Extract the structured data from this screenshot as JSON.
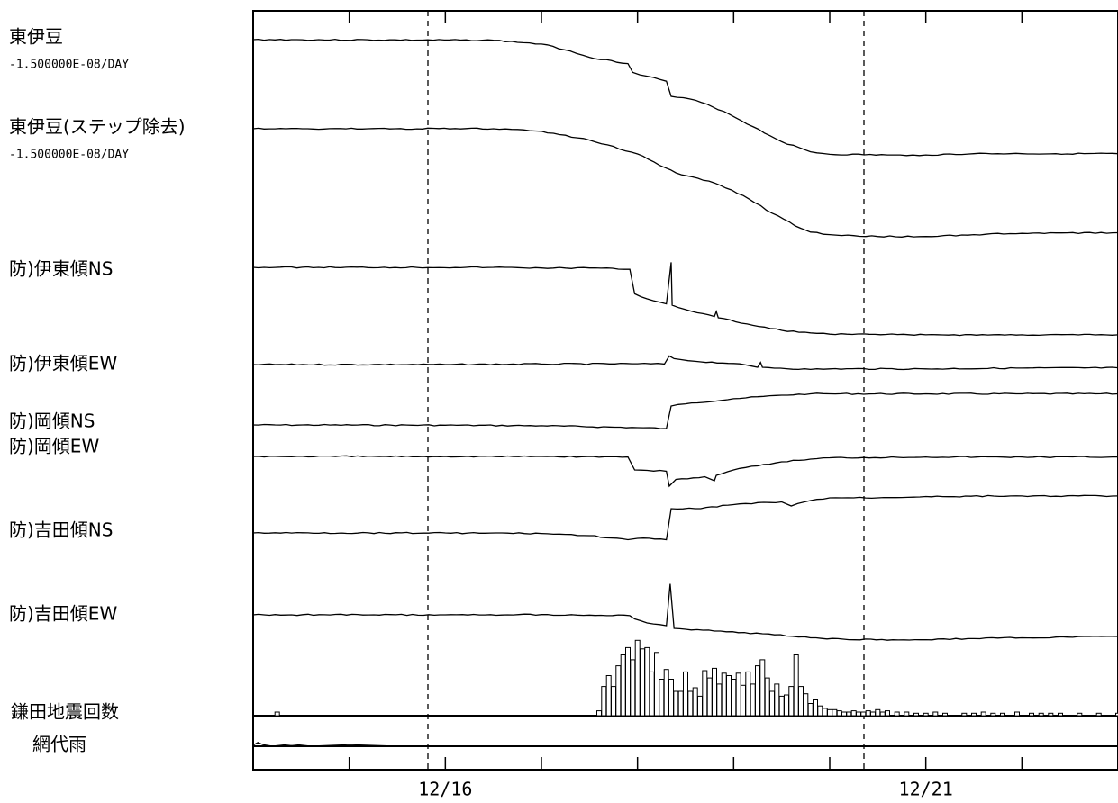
{
  "chart_data": {
    "type": "line",
    "title": "",
    "xlabel": "",
    "ylabel": "",
    "xlim": [
      14.0,
      23.0
    ],
    "x_tick_labels": [
      {
        "x": 16,
        "label": "12/16"
      },
      {
        "x": 21,
        "label": "12/21"
      }
    ],
    "x_ticks": [
      15,
      16,
      17,
      18,
      19,
      20,
      21,
      22
    ],
    "dashed_gridlines_x": [
      16,
      21
    ],
    "grid": false,
    "legend": "none",
    "series": [
      {
        "name": "東伊豆",
        "subtitle": "-1.500000E-08/DAY",
        "label_row": 0,
        "values": [
          [
            13.0,
            1.0
          ],
          [
            16.5,
            0.99
          ],
          [
            17.0,
            0.93
          ],
          [
            17.3,
            0.82
          ],
          [
            17.5,
            0.72
          ],
          [
            17.9,
            0.62
          ],
          [
            17.95,
            0.48
          ],
          [
            18.1,
            0.42
          ],
          [
            18.3,
            0.34
          ],
          [
            18.35,
            0.1
          ],
          [
            18.6,
            0.04
          ],
          [
            18.9,
            -0.14
          ],
          [
            19.2,
            -0.38
          ],
          [
            19.5,
            -0.62
          ],
          [
            19.8,
            -0.78
          ],
          [
            20.0,
            -0.82
          ],
          [
            20.6,
            -0.83
          ],
          [
            20.8,
            -0.84
          ],
          [
            21.0,
            -0.83
          ],
          [
            21.5,
            -0.81
          ],
          [
            22.0,
            -0.81
          ],
          [
            23.0,
            -0.81
          ]
        ]
      },
      {
        "name": "東伊豆(ステップ除去)",
        "subtitle": "-1.500000E-08/DAY",
        "label_row": 1,
        "values": [
          [
            13.0,
            1.0
          ],
          [
            16.5,
            1.0
          ],
          [
            17.0,
            0.96
          ],
          [
            17.5,
            0.82
          ],
          [
            18.0,
            0.6
          ],
          [
            18.4,
            0.3
          ],
          [
            18.8,
            0.14
          ],
          [
            19.1,
            -0.06
          ],
          [
            19.4,
            -0.34
          ],
          [
            19.7,
            -0.58
          ],
          [
            19.8,
            -0.64
          ],
          [
            20.0,
            -0.68
          ],
          [
            20.5,
            -0.71
          ],
          [
            21.0,
            -0.71
          ],
          [
            21.5,
            -0.68
          ],
          [
            22.0,
            -0.66
          ],
          [
            23.0,
            -0.65
          ]
        ]
      },
      {
        "name": "防)伊東傾NS",
        "label_row": 2,
        "values": [
          [
            13.0,
            1.0
          ],
          [
            16.5,
            1.0
          ],
          [
            17.0,
            0.99
          ],
          [
            17.5,
            0.99
          ],
          [
            17.92,
            0.97
          ],
          [
            17.97,
            0.58
          ],
          [
            18.1,
            0.5
          ],
          [
            18.3,
            0.42
          ],
          [
            18.35,
            1.08
          ],
          [
            18.36,
            0.4
          ],
          [
            18.5,
            0.33
          ],
          [
            18.8,
            0.22
          ],
          [
            18.82,
            0.3
          ],
          [
            18.84,
            0.2
          ],
          [
            19.2,
            0.08
          ],
          [
            19.5,
            0.0
          ],
          [
            19.8,
            -0.04
          ],
          [
            20.0,
            -0.06
          ],
          [
            21.0,
            -0.07
          ],
          [
            22.0,
            -0.07
          ],
          [
            23.0,
            -0.07
          ]
        ]
      },
      {
        "name": "防)伊東傾EW",
        "label_row": 3,
        "values": [
          [
            13.0,
            1.0
          ],
          [
            16.0,
            1.0
          ],
          [
            17.0,
            1.02
          ],
          [
            18.0,
            1.03
          ],
          [
            18.28,
            1.02
          ],
          [
            18.33,
            1.32
          ],
          [
            18.38,
            1.22
          ],
          [
            18.6,
            1.12
          ],
          [
            19.0,
            1.04
          ],
          [
            19.25,
            0.9
          ],
          [
            19.28,
            1.08
          ],
          [
            19.3,
            0.9
          ],
          [
            19.8,
            0.82
          ],
          [
            20.0,
            0.84
          ],
          [
            21.0,
            0.84
          ],
          [
            22.0,
            0.87
          ],
          [
            23.0,
            0.88
          ]
        ]
      },
      {
        "name": "防)岡傾NS",
        "label_row": 4,
        "values": [
          [
            13.0,
            1.0
          ],
          [
            16.0,
            0.99
          ],
          [
            17.0,
            0.97
          ],
          [
            18.0,
            0.9
          ],
          [
            18.3,
            0.87
          ],
          [
            18.35,
            1.7
          ],
          [
            18.5,
            1.78
          ],
          [
            19.0,
            1.97
          ],
          [
            19.5,
            2.1
          ],
          [
            19.8,
            2.15
          ],
          [
            20.0,
            2.15
          ],
          [
            21.0,
            2.15
          ],
          [
            22.0,
            2.15
          ],
          [
            23.0,
            2.15
          ]
        ]
      },
      {
        "name": "防)岡傾EW",
        "label_row": 5,
        "values": [
          [
            13.0,
            1.0
          ],
          [
            16.0,
            1.0
          ],
          [
            17.0,
            1.0
          ],
          [
            17.9,
            0.98
          ],
          [
            17.97,
            0.5
          ],
          [
            18.3,
            0.45
          ],
          [
            18.33,
            -0.1
          ],
          [
            18.4,
            0.15
          ],
          [
            18.7,
            0.25
          ],
          [
            18.8,
            0.1
          ],
          [
            18.82,
            0.3
          ],
          [
            19.0,
            0.5
          ],
          [
            19.5,
            0.8
          ],
          [
            19.8,
            0.9
          ],
          [
            20.0,
            0.95
          ],
          [
            21.0,
            0.98
          ],
          [
            22.0,
            0.98
          ],
          [
            23.0,
            0.98
          ]
        ]
      },
      {
        "name": "防)吉田傾NS",
        "label_row": 6,
        "values": [
          [
            13.0,
            1.0
          ],
          [
            16.0,
            1.0
          ],
          [
            17.0,
            0.98
          ],
          [
            17.5,
            0.9
          ],
          [
            17.9,
            0.75
          ],
          [
            18.0,
            0.8
          ],
          [
            18.3,
            0.75
          ],
          [
            18.35,
            1.9
          ],
          [
            18.6,
            1.9
          ],
          [
            19.0,
            2.05
          ],
          [
            19.5,
            2.15
          ],
          [
            19.6,
            2.0
          ],
          [
            19.8,
            2.2
          ],
          [
            20.0,
            2.3
          ],
          [
            20.5,
            2.3
          ],
          [
            21.0,
            2.35
          ],
          [
            22.0,
            2.37
          ],
          [
            23.0,
            2.37
          ]
        ]
      },
      {
        "name": "防)吉田傾EW",
        "label_row": 7,
        "values": [
          [
            13.0,
            1.0
          ],
          [
            16.0,
            1.0
          ],
          [
            17.0,
            1.01
          ],
          [
            17.5,
            0.99
          ],
          [
            17.92,
            0.97
          ],
          [
            17.97,
            0.85
          ],
          [
            18.1,
            0.7
          ],
          [
            18.3,
            0.6
          ],
          [
            18.34,
            2.15
          ],
          [
            18.38,
            0.5
          ],
          [
            18.8,
            0.4
          ],
          [
            19.3,
            0.3
          ],
          [
            19.8,
            0.15
          ],
          [
            20.2,
            0.08
          ],
          [
            21.0,
            0.08
          ],
          [
            21.5,
            0.12
          ],
          [
            22.0,
            0.15
          ],
          [
            23.0,
            0.2
          ]
        ]
      }
    ],
    "histogram": {
      "name": "鎌田地震回数",
      "label_row": 8,
      "bars": [
        [
          14.25,
          3
        ],
        [
          14.3,
          0
        ],
        [
          17.6,
          4
        ],
        [
          17.65,
          24
        ],
        [
          17.7,
          33
        ],
        [
          17.75,
          24
        ],
        [
          17.8,
          41
        ],
        [
          17.85,
          50
        ],
        [
          17.9,
          56
        ],
        [
          17.95,
          46
        ],
        [
          18.0,
          62
        ],
        [
          18.05,
          55
        ],
        [
          18.1,
          56
        ],
        [
          18.15,
          36
        ],
        [
          18.2,
          52
        ],
        [
          18.25,
          30
        ],
        [
          18.3,
          38
        ],
        [
          18.35,
          30
        ],
        [
          18.4,
          20
        ],
        [
          18.45,
          20
        ],
        [
          18.5,
          36
        ],
        [
          18.55,
          20
        ],
        [
          18.6,
          23
        ],
        [
          18.65,
          16
        ],
        [
          18.7,
          37
        ],
        [
          18.75,
          31
        ],
        [
          18.8,
          39
        ],
        [
          18.85,
          26
        ],
        [
          18.9,
          35
        ],
        [
          18.95,
          33
        ],
        [
          19.0,
          30
        ],
        [
          19.05,
          35
        ],
        [
          19.1,
          25
        ],
        [
          19.15,
          36
        ],
        [
          19.2,
          26
        ],
        [
          19.25,
          41
        ],
        [
          19.3,
          46
        ],
        [
          19.35,
          31
        ],
        [
          19.4,
          20
        ],
        [
          19.45,
          26
        ],
        [
          19.5,
          16
        ],
        [
          19.55,
          17
        ],
        [
          19.6,
          24
        ],
        [
          19.65,
          50
        ],
        [
          19.7,
          24
        ],
        [
          19.75,
          18
        ],
        [
          19.8,
          10
        ],
        [
          19.85,
          13
        ],
        [
          19.9,
          8
        ],
        [
          19.95,
          6
        ],
        [
          20.0,
          5
        ],
        [
          20.05,
          5
        ],
        [
          20.1,
          4
        ],
        [
          20.15,
          3
        ],
        [
          20.2,
          3
        ],
        [
          20.25,
          4
        ],
        [
          20.3,
          3
        ],
        [
          20.35,
          3
        ],
        [
          20.4,
          4
        ],
        [
          20.45,
          3
        ],
        [
          20.5,
          5
        ],
        [
          20.55,
          3
        ],
        [
          20.6,
          4
        ],
        [
          20.7,
          3
        ],
        [
          20.8,
          3
        ],
        [
          20.9,
          2
        ],
        [
          21.0,
          2
        ],
        [
          21.1,
          3
        ],
        [
          21.2,
          2
        ],
        [
          21.4,
          2
        ],
        [
          21.5,
          2
        ],
        [
          21.6,
          3
        ],
        [
          21.7,
          2
        ],
        [
          21.8,
          2
        ],
        [
          21.95,
          3
        ],
        [
          22.1,
          2
        ],
        [
          22.2,
          2
        ],
        [
          22.3,
          2
        ],
        [
          22.4,
          2
        ],
        [
          22.6,
          2
        ],
        [
          22.8,
          2
        ],
        [
          23.0,
          2
        ]
      ]
    },
    "rain": {
      "name": "網代雨",
      "label_row": 9,
      "values": [
        [
          14.0,
          0.2
        ],
        [
          14.05,
          0.7
        ],
        [
          14.1,
          0.3
        ],
        [
          14.2,
          0
        ],
        [
          14.4,
          0.4
        ],
        [
          14.6,
          0
        ],
        [
          15.0,
          0.3
        ],
        [
          15.5,
          0
        ],
        [
          23.0,
          0
        ]
      ]
    }
  }
}
